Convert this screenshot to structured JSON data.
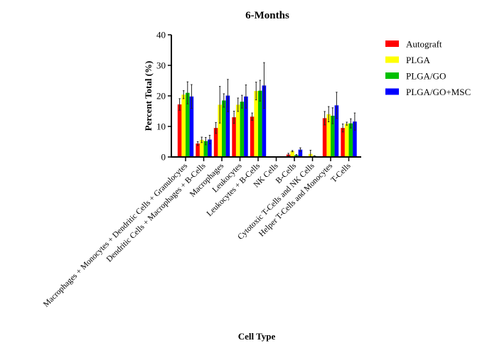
{
  "chart_data": {
    "type": "bar",
    "title": "6-Months",
    "xlabel": "Cell Type",
    "ylabel": "Percent Total (%)",
    "ylim": [
      0,
      40
    ],
    "yticks": [
      0,
      10,
      20,
      30,
      40
    ],
    "grid": false,
    "legend_position": "right",
    "categories": [
      "Macrophages + Monocytes + Dendritic Cells + Granulocytes",
      "Dendritic Cells + Macrophages + B-Cells",
      "Macrophages",
      "Leukocytes",
      "Leukocytes + B-Cells",
      "NK Cells",
      "B-Cells",
      "Cytotoxic T-Cells and NK Cells",
      "Helper T-Cells and Monocytes",
      "T-Cells"
    ],
    "series": [
      {
        "name": "Autograft",
        "color": "#ff0000",
        "values": [
          17.2,
          4.4,
          9.5,
          13.0,
          13.2,
          0,
          0.8,
          0,
          12.7,
          9.5
        ],
        "errors": [
          1.9,
          0.6,
          1.8,
          2.0,
          1.2,
          0,
          0.4,
          0,
          2.2,
          1.3
        ]
      },
      {
        "name": "PLGA",
        "color": "#ffff00",
        "values": [
          20.4,
          5.6,
          17.1,
          17.1,
          21.6,
          0,
          1.9,
          1.0,
          14.0,
          10.9
        ],
        "errors": [
          1.3,
          0.9,
          6.0,
          2.2,
          2.9,
          0,
          0.2,
          1.2,
          2.5,
          0.5
        ]
      },
      {
        "name": "PLGA/GO",
        "color": "#00c000",
        "values": [
          21.0,
          5.2,
          18.5,
          18.1,
          21.7,
          0,
          0.6,
          0.3,
          13.5,
          11.0
        ],
        "errors": [
          3.6,
          1.2,
          2.2,
          2.1,
          3.4,
          0,
          0.2,
          0.1,
          2.6,
          1.5
        ]
      },
      {
        "name": "PLGA/GO+MSC",
        "color": "#0000ff",
        "values": [
          19.8,
          5.7,
          20.1,
          19.8,
          23.4,
          0,
          2.4,
          0.1,
          16.9,
          11.6
        ],
        "errors": [
          3.9,
          1.4,
          5.3,
          3.8,
          7.5,
          0,
          0.6,
          0,
          4.3,
          2.8
        ]
      }
    ]
  }
}
